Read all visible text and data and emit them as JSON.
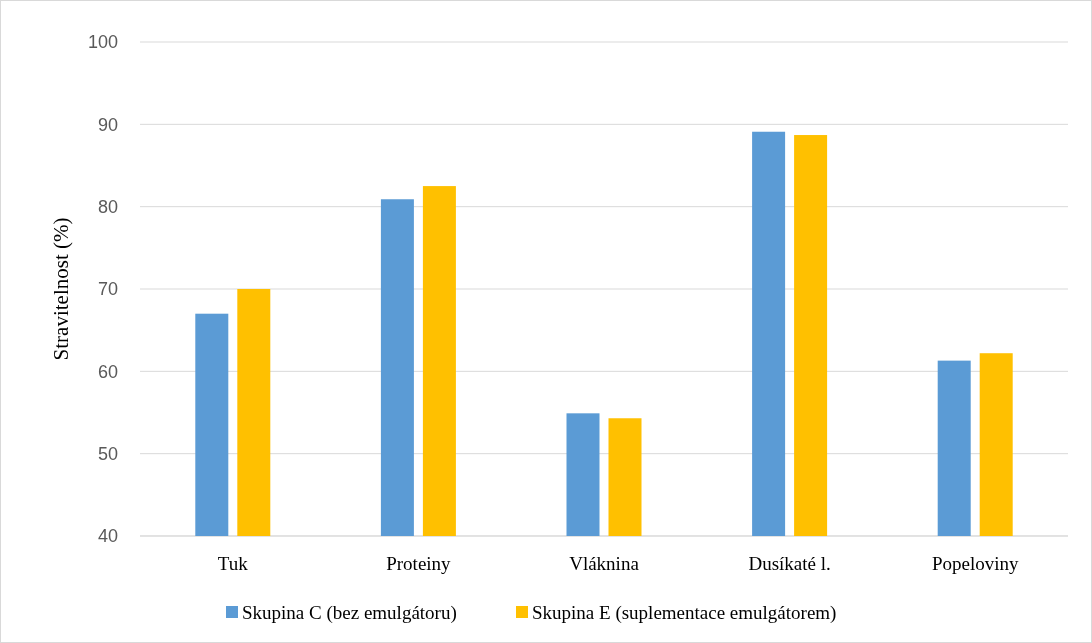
{
  "chart_data": {
    "type": "bar",
    "ylabel": "Stravitelnost (%)",
    "categories": [
      "Tuk",
      "Proteiny",
      "Vláknina",
      "Dusíkaté l.",
      "Popeloviny"
    ],
    "series": [
      {
        "name": "Skupina C (bez emulgátoru)",
        "color": "#5b9bd5",
        "values": [
          67.0,
          80.9,
          54.9,
          89.1,
          61.3
        ]
      },
      {
        "name": "Skupina E (suplementace emulgátorem)",
        "color": "#ffc000",
        "values": [
          70.0,
          82.5,
          54.3,
          88.7,
          62.2
        ]
      }
    ],
    "ylim": [
      40,
      100
    ],
    "yticks": [
      40,
      50,
      60,
      70,
      80,
      90,
      100
    ],
    "grid": "y",
    "legend": "bottom"
  }
}
